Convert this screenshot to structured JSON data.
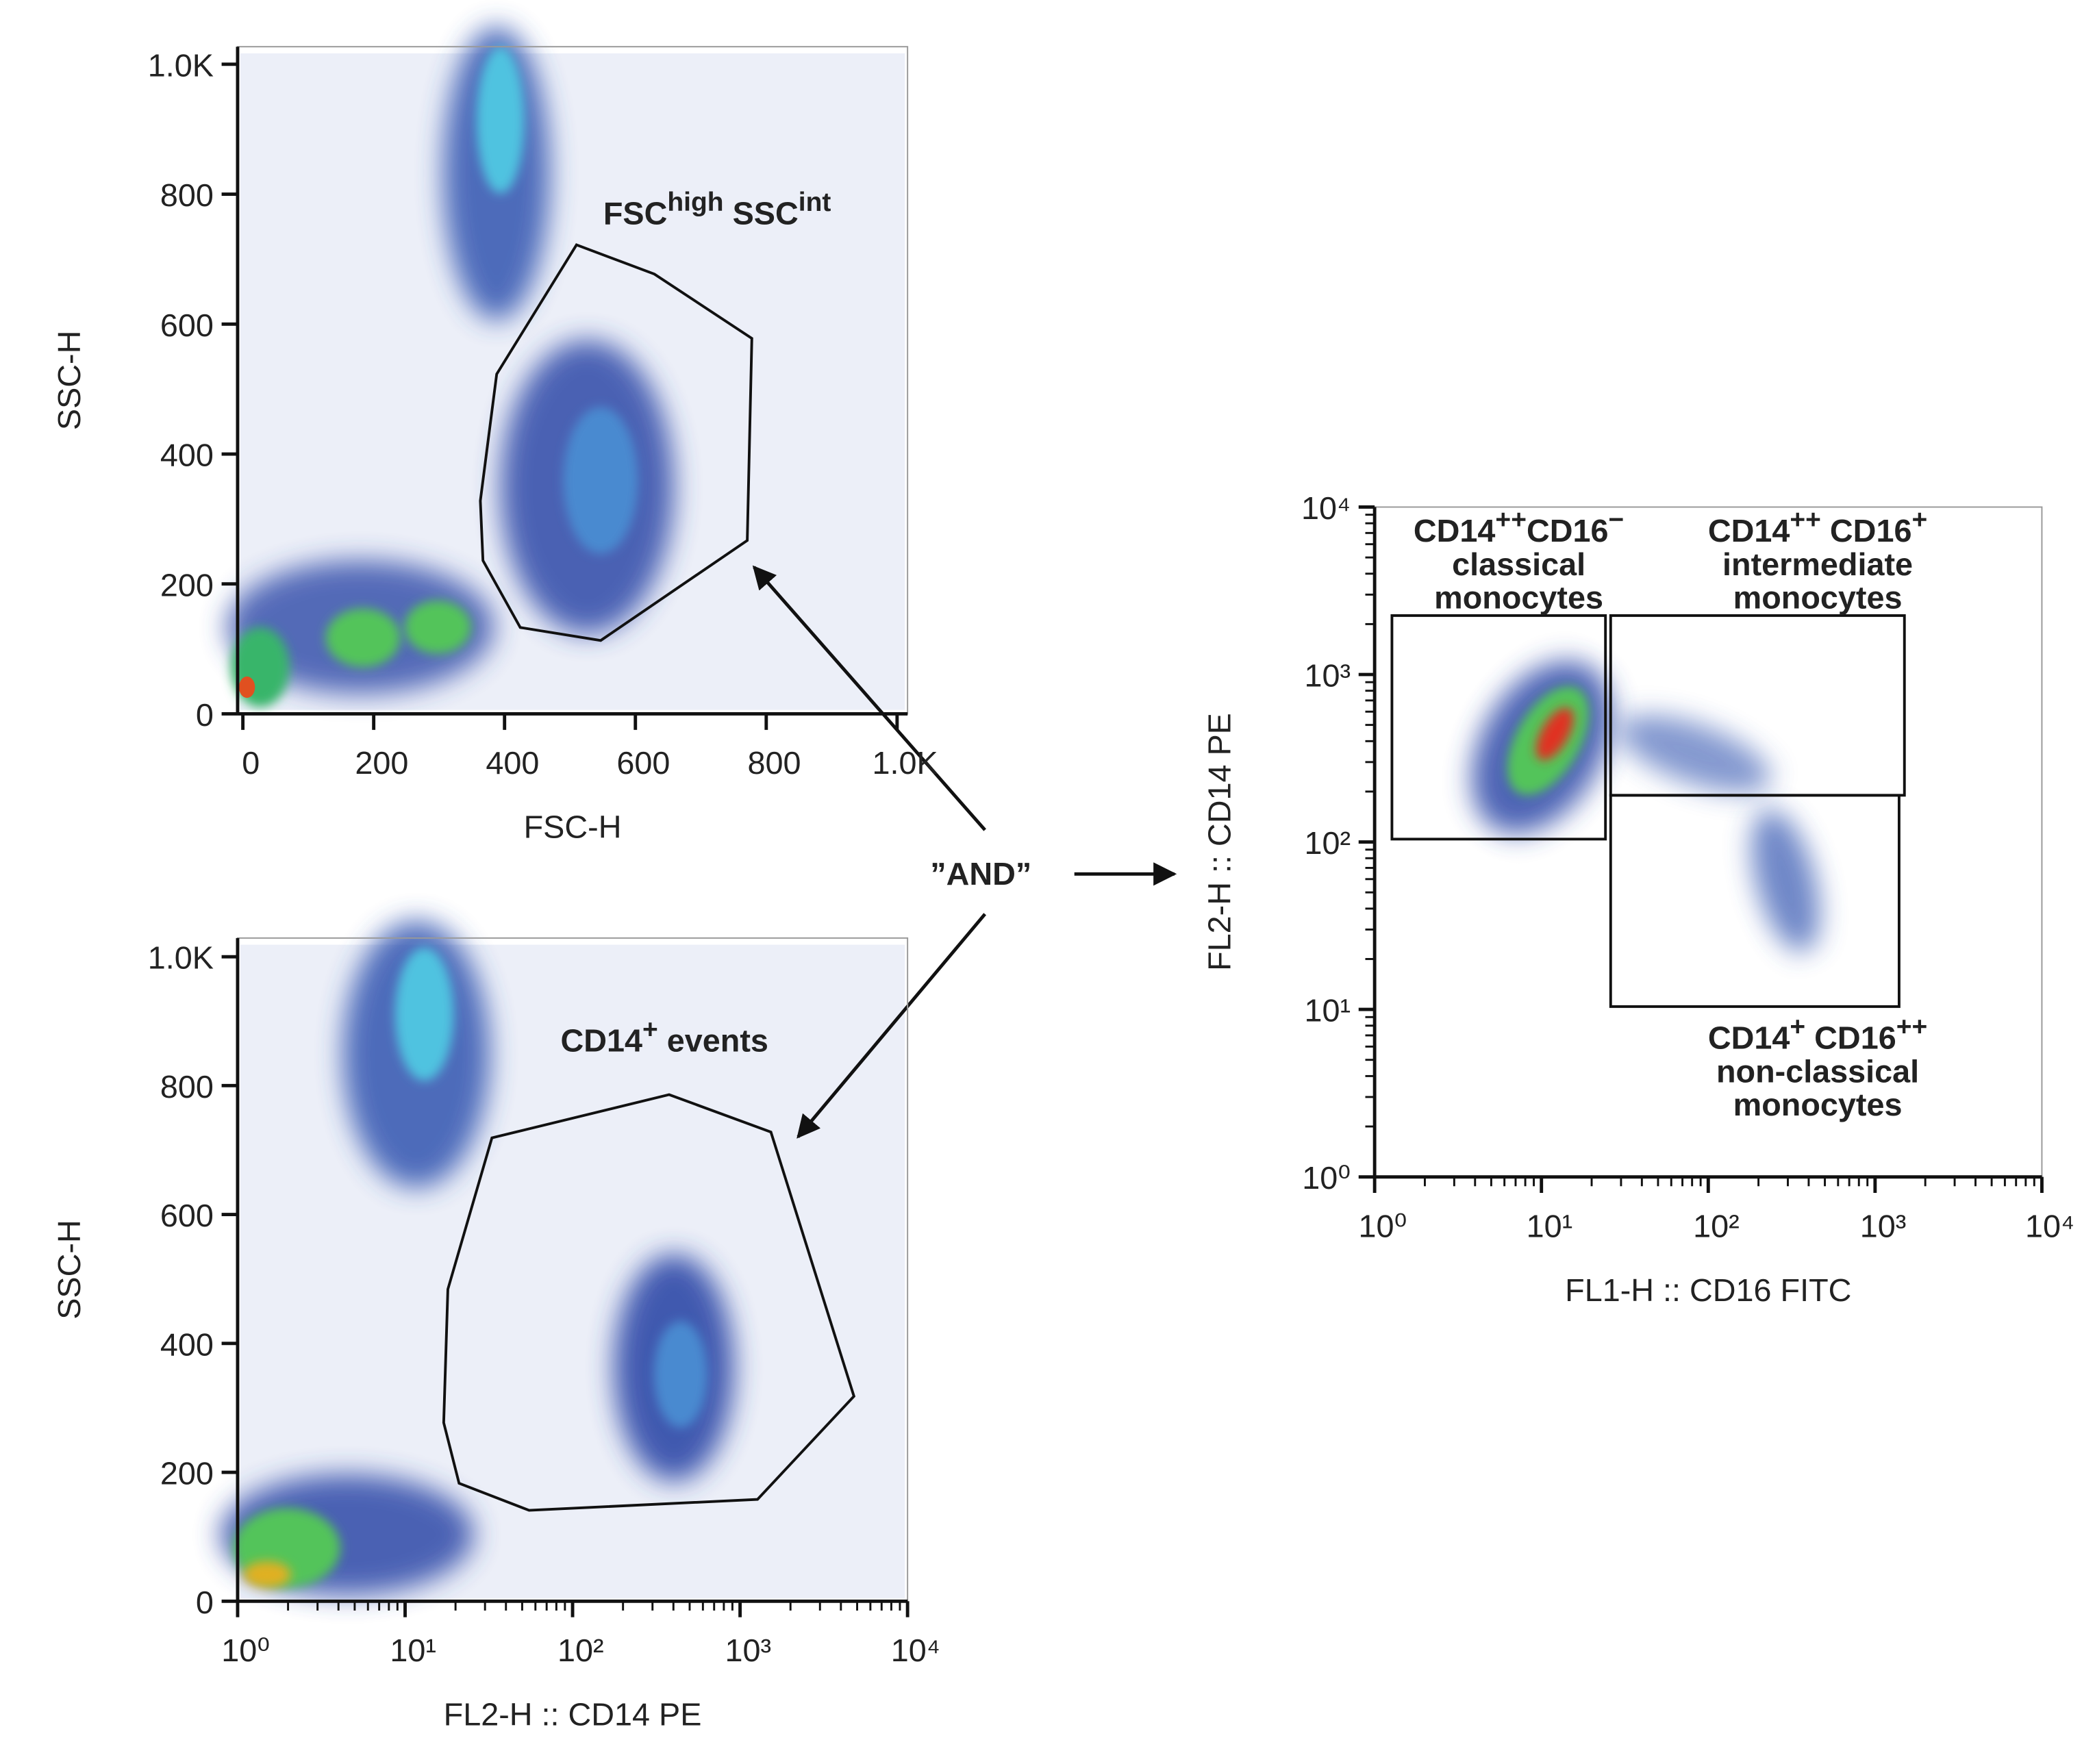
{
  "chart_data": [
    {
      "type": "density",
      "xlabel": "FSC-H",
      "ylabel": "SSC-H",
      "xlim": [
        -8,
        1016
      ],
      "ylim": [
        0,
        1027
      ],
      "xticks": [
        0,
        200,
        400,
        600,
        800,
        {
          "value": 1000,
          "label": "1.0K"
        }
      ],
      "yticks": [
        0,
        200,
        400,
        600,
        800,
        {
          "value": 1000,
          "label": "1.0K"
        }
      ],
      "gates": [
        {
          "shape": "polygon",
          "x": [
            510,
            629,
            778,
            771,
            547,
            424,
            367,
            363,
            388
          ],
          "y": [
            722,
            677,
            578,
            267,
            113,
            133,
            236,
            328,
            523
          ],
          "label": [
            [
              {
                "text": "FSC"
              },
              {
                "text": "high",
                "sup": true
              },
              {
                "text": " SSC"
              },
              {
                "text": "int",
                "sup": true
              }
            ]
          ]
        }
      ]
    },
    {
      "type": "density",
      "xlabel": "FL2-H :: CD14 PE",
      "ylabel": "SSC-H",
      "xscale": "log",
      "xlim": [
        1,
        10000
      ],
      "ylim": [
        0,
        1029
      ],
      "xticks": [
        {
          "value": 1,
          "label": "10⁰"
        },
        {
          "value": 10,
          "label": "10¹"
        },
        {
          "value": 100,
          "label": "10²"
        },
        {
          "value": 1000,
          "label": "10³"
        },
        {
          "value": 10000,
          "label": "10⁴"
        }
      ],
      "yticks": [
        0,
        200,
        400,
        600,
        800,
        {
          "value": 1000,
          "label": "1.0K"
        }
      ],
      "gates": [
        {
          "shape": "polygon",
          "x": [
            33,
            377,
            1528,
            4786,
            1271,
            55,
            21,
            17,
            18
          ],
          "y": [
            719,
            786,
            728,
            318,
            158,
            141,
            183,
            277,
            484
          ],
          "label": [
            [
              {
                "text": "CD14"
              },
              {
                "text": "+",
                "sup": true
              },
              {
                "text": " events"
              }
            ]
          ]
        }
      ]
    },
    {
      "type": "density",
      "xlabel": "FL1-H :: CD16 FITC",
      "ylabel": "FL2-H :: CD14 PE",
      "xscale": "log",
      "yscale": "log",
      "xlim": [
        1,
        10000
      ],
      "ylim": [
        1,
        10000
      ],
      "xticks": [
        {
          "value": 1,
          "label": "10⁰"
        },
        {
          "value": 10,
          "label": "10¹"
        },
        {
          "value": 100,
          "label": "10²"
        },
        {
          "value": 1000,
          "label": "10³"
        },
        {
          "value": 10000,
          "label": "10⁴"
        }
      ],
      "yticks": [
        {
          "value": 1,
          "label": "10⁰"
        },
        {
          "value": 10,
          "label": "10¹"
        },
        {
          "value": 100,
          "label": "10²"
        },
        {
          "value": 1000,
          "label": "10³"
        },
        {
          "value": 10000,
          "label": "10⁴"
        }
      ],
      "gates": [
        {
          "shape": "rect",
          "x": [
            1.27,
            24.2
          ],
          "y": [
            104,
            2249
          ],
          "label": [
            [
              {
                "text": "CD14"
              },
              {
                "text": "++",
                "sup": true
              },
              {
                "text": "CD16"
              },
              {
                "text": "−",
                "sup": true
              }
            ],
            [
              {
                "text": "classical"
              }
            ],
            [
              {
                "text": "monocytes"
              }
            ]
          ]
        },
        {
          "shape": "rect",
          "x": [
            26,
            1500
          ],
          "y": [
            190,
            2249
          ],
          "label": [
            [
              {
                "text": "CD14"
              },
              {
                "text": "++",
                "sup": true
              },
              {
                "text": " CD16"
              },
              {
                "text": "+",
                "sup": true
              }
            ],
            [
              {
                "text": "intermediate"
              }
            ],
            [
              {
                "text": "monocytes"
              }
            ]
          ]
        },
        {
          "shape": "rect",
          "x": [
            26,
            1393
          ],
          "y": [
            10.4,
            190
          ],
          "label": [
            [
              {
                "text": "CD14"
              },
              {
                "text": "+",
                "sup": true
              },
              {
                "text": " CD16"
              },
              {
                "text": "++",
                "sup": true
              }
            ],
            [
              {
                "text": "non-classical"
              }
            ],
            [
              {
                "text": "monocytes"
              }
            ]
          ]
        }
      ]
    }
  ],
  "connector": "”AND”"
}
